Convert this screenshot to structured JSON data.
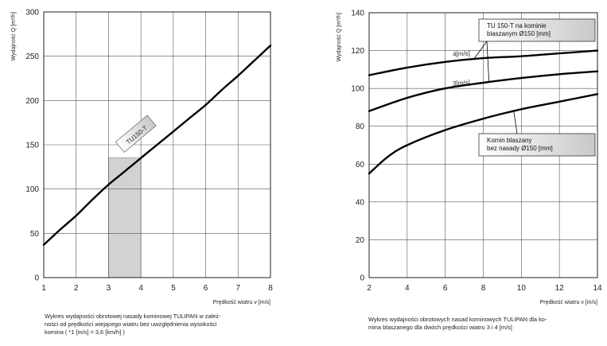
{
  "chart_data": [
    {
      "type": "line",
      "ylabel": "Wydajność Q [m³/h]",
      "xlabel": "Prędkość wiatru v [m/s]",
      "xlim": [
        1,
        8
      ],
      "ylim": [
        0,
        300
      ],
      "xticks": [
        1,
        2,
        3,
        4,
        5,
        6,
        7,
        8
      ],
      "yticks": [
        0,
        50,
        100,
        150,
        200,
        250,
        300
      ],
      "grid": true,
      "series": [
        {
          "name": "TU150-T",
          "x": [
            1,
            1.5,
            2,
            2.5,
            3,
            3.5,
            4,
            4.5,
            5,
            5.5,
            6,
            6.5,
            7,
            7.5,
            8
          ],
          "y": [
            37,
            54,
            70,
            88,
            105,
            120,
            135,
            150,
            165,
            180,
            195,
            212,
            228,
            245,
            262
          ]
        }
      ],
      "shaded_region": {
        "x": [
          3,
          4
        ]
      },
      "caption_lines": [
        "Wykres wydajności obrotowej nasady kominowej TULIPAN w zależ-",
        "ności od prędkości wiejącego wiatru bez uwzględnienia wysokości",
        "komina ( *1 [m/s] = 3,6 [km/h] )"
      ]
    },
    {
      "type": "line",
      "ylabel": "Wydajność Q [m³/h]",
      "xlabel": "Prędkość wiatru v [m/s]",
      "xlim": [
        2,
        14
      ],
      "ylim": [
        0,
        140
      ],
      "xticks": [
        2,
        4,
        6,
        8,
        10,
        12,
        14
      ],
      "yticks": [
        0,
        20,
        40,
        60,
        80,
        100,
        120,
        140
      ],
      "grid": true,
      "series": [
        {
          "name": "4[m/s]",
          "x": [
            2,
            4,
            6,
            8,
            10,
            12,
            14
          ],
          "y": [
            107,
            111,
            114,
            116,
            117,
            118.5,
            120
          ]
        },
        {
          "name": "3[m/s]",
          "x": [
            2,
            4,
            6,
            8,
            10,
            12,
            14
          ],
          "y": [
            88,
            95,
            100,
            103,
            105.5,
            107.5,
            109
          ]
        },
        {
          "name": "",
          "x": [
            2,
            3,
            4,
            6,
            8,
            10,
            12,
            14
          ],
          "y": [
            55,
            64,
            70,
            78,
            84,
            89,
            93,
            97
          ]
        }
      ],
      "annotations": [
        {
          "lines": [
            "TU 150-T na kominie",
            "blaszanym Ø150 [mm]"
          ]
        },
        {
          "lines": [
            "Komin blaszany",
            "bez nasady Ø150 [mm]"
          ]
        }
      ],
      "caption_lines": [
        "Wykres wydajności obrotowych nasad kominowych TULIPAN dla ko-",
        "mina blaszanego dla dwóch prędkości wiatru 3 i 4 [m/s]"
      ]
    }
  ]
}
